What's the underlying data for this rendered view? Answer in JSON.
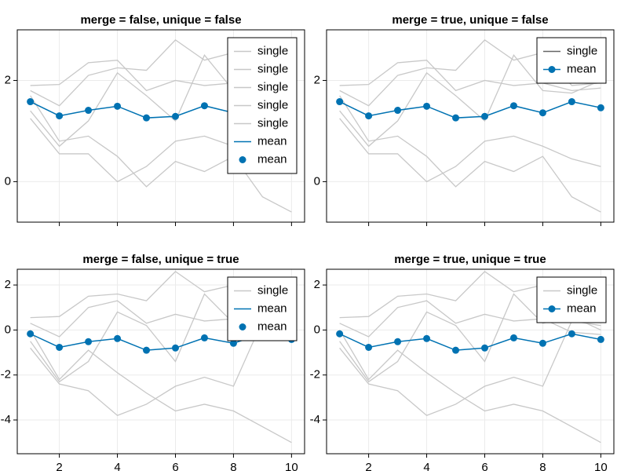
{
  "chart_data": [
    {
      "type": "line",
      "title": "merge = false, unique = false",
      "x": [
        1,
        2,
        3,
        4,
        5,
        6,
        7,
        8,
        9,
        10
      ],
      "xlim": [
        0.55,
        10.45
      ],
      "xticks": [
        2,
        4,
        6,
        8,
        10
      ],
      "xtick_labels": false,
      "ylim": [
        -0.8,
        3.0
      ],
      "yticks": [
        0,
        2
      ],
      "grid": true,
      "legend_position": "top-right",
      "series": [
        {
          "color": "#c8c8c8",
          "values": [
            1.9,
            1.92,
            2.35,
            2.4,
            1.8,
            2.0,
            1.9,
            1.95,
            1.8,
            1.85
          ]
        },
        {
          "color": "#c8c8c8",
          "values": [
            1.8,
            1.5,
            2.1,
            2.25,
            2.2,
            2.8,
            2.4,
            2.55,
            1.9,
            1.95
          ]
        },
        {
          "color": "#c8c8c8",
          "values": [
            1.4,
            0.7,
            1.2,
            2.15,
            1.7,
            1.2,
            2.5,
            1.8,
            1.75,
            2.0
          ]
        },
        {
          "color": "#c8c8c8",
          "values": [
            1.7,
            0.8,
            0.9,
            0.5,
            -0.1,
            0.4,
            0.2,
            0.5,
            -0.3,
            -0.6
          ]
        },
        {
          "color": "#c8c8c8",
          "values": [
            1.25,
            0.55,
            0.55,
            0.0,
            0.3,
            0.8,
            0.9,
            0.7,
            0.45,
            0.3
          ]
        },
        {
          "color": "#0072b2",
          "marker": true,
          "values": [
            1.58,
            1.3,
            1.41,
            1.49,
            1.26,
            1.29,
            1.5,
            1.36,
            1.58,
            1.46
          ]
        }
      ],
      "legend": [
        {
          "label": "single",
          "style": "line",
          "color": "#c8c8c8"
        },
        {
          "label": "single",
          "style": "line",
          "color": "#c8c8c8"
        },
        {
          "label": "single",
          "style": "line",
          "color": "#c8c8c8"
        },
        {
          "label": "single",
          "style": "line",
          "color": "#c8c8c8"
        },
        {
          "label": "single",
          "style": "line",
          "color": "#c8c8c8"
        },
        {
          "label": "mean",
          "style": "line",
          "color": "#0072b2"
        },
        {
          "label": "mean",
          "style": "marker",
          "color": "#0072b2"
        }
      ]
    },
    {
      "type": "line",
      "title": "merge = true, unique = false",
      "x": [
        1,
        2,
        3,
        4,
        5,
        6,
        7,
        8,
        9,
        10
      ],
      "xlim": [
        0.55,
        10.45
      ],
      "xticks": [
        2,
        4,
        6,
        8,
        10
      ],
      "xtick_labels": false,
      "ylim": [
        -0.8,
        3.0
      ],
      "yticks": [
        0,
        2
      ],
      "grid": true,
      "legend_position": "top-right",
      "series": [
        {
          "color": "#c8c8c8",
          "values": [
            1.9,
            1.92,
            2.35,
            2.4,
            1.8,
            2.0,
            1.9,
            1.95,
            1.8,
            1.85
          ]
        },
        {
          "color": "#c8c8c8",
          "values": [
            1.8,
            1.5,
            2.1,
            2.25,
            2.2,
            2.8,
            2.4,
            2.55,
            1.9,
            1.95
          ]
        },
        {
          "color": "#c8c8c8",
          "values": [
            1.4,
            0.7,
            1.2,
            2.15,
            1.7,
            1.2,
            2.5,
            1.8,
            1.75,
            2.0
          ]
        },
        {
          "color": "#c8c8c8",
          "values": [
            1.7,
            0.8,
            0.9,
            0.5,
            -0.1,
            0.4,
            0.2,
            0.5,
            -0.3,
            -0.6
          ]
        },
        {
          "color": "#c8c8c8",
          "values": [
            1.25,
            0.55,
            0.55,
            0.0,
            0.3,
            0.8,
            0.9,
            0.7,
            0.45,
            0.3
          ]
        },
        {
          "color": "#0072b2",
          "marker": true,
          "values": [
            1.58,
            1.3,
            1.41,
            1.49,
            1.26,
            1.29,
            1.5,
            1.36,
            1.58,
            1.46
          ]
        }
      ],
      "legend": [
        {
          "label": "single",
          "style": "line",
          "color": "#666666"
        },
        {
          "label": "mean",
          "style": "line-marker",
          "color": "#0072b2"
        }
      ]
    },
    {
      "type": "line",
      "title": "merge = false, unique = true",
      "x": [
        1,
        2,
        3,
        4,
        5,
        6,
        7,
        8,
        9,
        10
      ],
      "xlim": [
        0.55,
        10.45
      ],
      "xticks": [
        2,
        4,
        6,
        8,
        10
      ],
      "xtick_labels": true,
      "ylim": [
        -5.5,
        2.7
      ],
      "yticks": [
        -4,
        -2,
        0,
        2
      ],
      "grid": true,
      "legend_position": "top-right",
      "series": [
        {
          "color": "#c8c8c8",
          "values": [
            0.55,
            0.6,
            1.5,
            1.6,
            1.3,
            2.6,
            1.7,
            2.0,
            0.8,
            0.4
          ]
        },
        {
          "color": "#c8c8c8",
          "values": [
            0.3,
            -0.3,
            1.0,
            1.3,
            0.3,
            0.7,
            0.4,
            0.5,
            -0.1,
            -0.2
          ]
        },
        {
          "color": "#c8c8c8",
          "values": [
            -0.5,
            -2.3,
            -1.4,
            0.8,
            0.2,
            -1.4,
            1.6,
            0.3,
            0.6,
            0.0
          ]
        },
        {
          "color": "#c8c8c8",
          "values": [
            -0.8,
            -2.4,
            -2.7,
            -3.8,
            -3.3,
            -2.5,
            -2.1,
            -2.5,
            0.4,
            0.2
          ]
        },
        {
          "color": "#c8c8c8",
          "values": [
            0.0,
            -2.2,
            -0.9,
            -1.9,
            -2.8,
            -3.6,
            -3.3,
            -3.6,
            -4.3,
            -5.0
          ]
        },
        {
          "color": "#0072b2",
          "marker": true,
          "values": [
            -0.17,
            -0.77,
            -0.52,
            -0.38,
            -0.9,
            -0.8,
            -0.35,
            -0.59,
            -0.17,
            -0.42
          ]
        }
      ],
      "legend": [
        {
          "label": "single",
          "style": "line",
          "color": "#c8c8c8"
        },
        {
          "label": "mean",
          "style": "line",
          "color": "#0072b2"
        },
        {
          "label": "mean",
          "style": "marker",
          "color": "#0072b2"
        }
      ]
    },
    {
      "type": "line",
      "title": "merge = true, unique = true",
      "x": [
        1,
        2,
        3,
        4,
        5,
        6,
        7,
        8,
        9,
        10
      ],
      "xlim": [
        0.55,
        10.45
      ],
      "xticks": [
        2,
        4,
        6,
        8,
        10
      ],
      "xtick_labels": true,
      "ylim": [
        -5.5,
        2.7
      ],
      "yticks": [
        -4,
        -2,
        0,
        2
      ],
      "grid": true,
      "legend_position": "top-right",
      "series": [
        {
          "color": "#c8c8c8",
          "values": [
            0.55,
            0.6,
            1.5,
            1.6,
            1.3,
            2.6,
            1.7,
            2.0,
            0.8,
            0.4
          ]
        },
        {
          "color": "#c8c8c8",
          "values": [
            0.3,
            -0.3,
            1.0,
            1.3,
            0.3,
            0.7,
            0.4,
            0.5,
            -0.1,
            -0.2
          ]
        },
        {
          "color": "#c8c8c8",
          "values": [
            -0.5,
            -2.3,
            -1.4,
            0.8,
            0.2,
            -1.4,
            1.6,
            0.3,
            0.6,
            0.0
          ]
        },
        {
          "color": "#c8c8c8",
          "values": [
            -0.8,
            -2.4,
            -2.7,
            -3.8,
            -3.3,
            -2.5,
            -2.1,
            -2.5,
            0.4,
            0.2
          ]
        },
        {
          "color": "#c8c8c8",
          "values": [
            0.0,
            -2.2,
            -0.9,
            -1.9,
            -2.8,
            -3.6,
            -3.3,
            -3.6,
            -4.3,
            -5.0
          ]
        },
        {
          "color": "#0072b2",
          "marker": true,
          "values": [
            -0.17,
            -0.77,
            -0.52,
            -0.38,
            -0.9,
            -0.8,
            -0.35,
            -0.59,
            -0.17,
            -0.42
          ]
        }
      ],
      "legend": [
        {
          "label": "single",
          "style": "line",
          "color": "#c8c8c8"
        },
        {
          "label": "mean",
          "style": "line-marker",
          "color": "#0072b2"
        }
      ]
    }
  ]
}
